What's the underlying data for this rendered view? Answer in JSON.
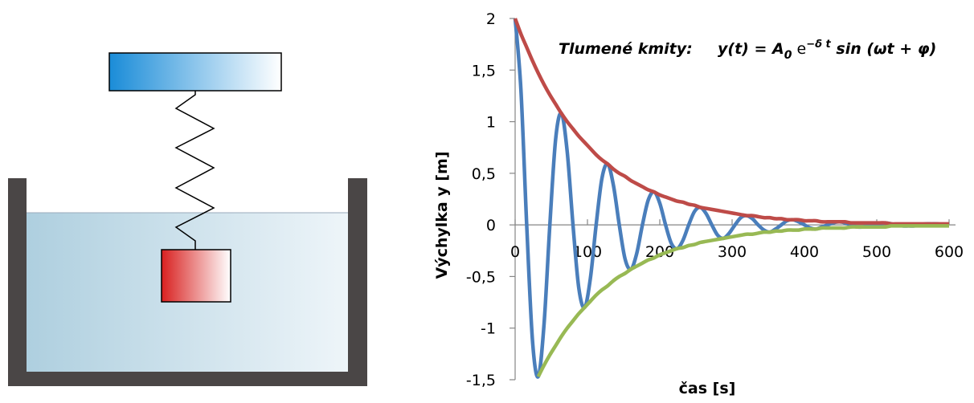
{
  "chart_data": {
    "type": "line",
    "annotation": "Tlumené kmity:",
    "formula": {
      "lhs": "y(t) = A",
      "sub": "0",
      "base": " e",
      "sup": "−δ t",
      "rest": " sin (ωt + φ)"
    },
    "x_label": "čas [s]",
    "y_label": "Výchylka y [m]",
    "x": [
      0,
      8,
      16,
      24,
      32,
      40,
      48,
      56,
      64,
      72,
      80,
      88,
      96,
      104,
      112,
      120,
      128,
      136,
      144,
      152,
      160,
      168,
      176,
      184,
      192,
      200,
      208,
      216,
      224,
      232,
      240,
      248,
      256,
      264,
      272,
      280,
      288,
      296,
      304,
      312,
      320,
      328,
      336,
      344,
      352,
      360,
      368,
      376,
      384,
      392,
      400,
      408,
      416,
      424,
      432,
      440,
      448,
      456,
      464,
      472,
      480,
      488,
      496,
      504,
      512,
      520,
      528,
      536,
      544,
      552,
      560,
      568,
      576,
      584,
      592,
      600
    ],
    "series": [
      {
        "color": "#4a7ebb",
        "values": [
          2,
          1.31,
          0,
          -1.12,
          -1.47,
          -0.96,
          0,
          0.83,
          1.08,
          0.71,
          0,
          -0.61,
          -0.8,
          -0.52,
          0,
          0.45,
          0.59,
          0.38,
          0,
          -0.33,
          -0.43,
          -0.28,
          0,
          0.24,
          0.32,
          0.21,
          0,
          -0.18,
          -0.23,
          -0.15,
          0,
          0.13,
          0.17,
          0.11,
          0,
          -0.1,
          -0.13,
          -0.08,
          0,
          0.07,
          0.09,
          0.06,
          0,
          -0.05,
          -0.07,
          -0.04,
          0,
          0.04,
          0.05,
          0.03,
          0,
          -0.03,
          -0.04,
          -0.02,
          0,
          0.02,
          0.03,
          0.02,
          0,
          -0.02,
          -0.02,
          -0.01,
          0,
          0.01,
          0.02,
          0.01,
          0,
          -0.01,
          -0.01,
          -0.01,
          0,
          0.01,
          0.01,
          0.01,
          0,
          0
        ]
      },
      {
        "color": "#be4b48",
        "values": [
          2,
          1.85,
          1.72,
          1.59,
          1.47,
          1.36,
          1.26,
          1.17,
          1.08,
          1,
          0.93,
          0.86,
          0.8,
          0.74,
          0.68,
          0.63,
          0.59,
          0.54,
          0.5,
          0.47,
          0.43,
          0.4,
          0.37,
          0.34,
          0.32,
          0.29,
          0.27,
          0.25,
          0.23,
          0.22,
          0.2,
          0.19,
          0.17,
          0.16,
          0.15,
          0.14,
          0.13,
          0.12,
          0.11,
          0.1,
          0.09,
          0.09,
          0.08,
          0.07,
          0.07,
          0.06,
          0.06,
          0.05,
          0.05,
          0.05,
          0.04,
          0.04,
          0.04,
          0.03,
          0.03,
          0.03,
          0.03,
          0.03,
          0.02,
          0.02,
          0.02,
          0.02,
          0.02,
          0.02,
          0.02,
          0.01,
          0.01,
          0.01,
          0.01,
          0.01,
          0.01,
          0.01,
          0.01,
          0.01,
          0.01,
          0.01
        ]
      },
      {
        "color": "#98b954",
        "values": [
          null,
          null,
          null,
          null,
          -1.47,
          -1.36,
          -1.26,
          -1.17,
          -1.08,
          -1,
          -0.93,
          -0.86,
          -0.8,
          -0.74,
          -0.68,
          -0.63,
          -0.59,
          -0.54,
          -0.5,
          -0.47,
          -0.43,
          -0.4,
          -0.37,
          -0.34,
          -0.32,
          -0.29,
          -0.27,
          -0.25,
          -0.23,
          -0.22,
          -0.2,
          -0.19,
          -0.17,
          -0.16,
          -0.15,
          -0.14,
          -0.13,
          -0.12,
          -0.11,
          -0.1,
          -0.09,
          -0.09,
          -0.08,
          -0.07,
          -0.07,
          -0.06,
          -0.06,
          -0.05,
          -0.05,
          -0.05,
          -0.04,
          -0.04,
          -0.04,
          -0.03,
          -0.03,
          -0.03,
          -0.03,
          -0.03,
          -0.02,
          -0.02,
          -0.02,
          -0.02,
          -0.02,
          -0.02,
          -0.02,
          -0.01,
          -0.01,
          -0.01,
          -0.01,
          -0.01,
          -0.01,
          -0.01,
          -0.01,
          -0.01,
          -0.01,
          -0.01
        ]
      }
    ],
    "xlim": [
      0,
      600
    ],
    "xticks": [
      0,
      100,
      200,
      300,
      400,
      500,
      600
    ],
    "ylim": [
      -1.5,
      2
    ],
    "yticks": [
      {
        "value": -1.5,
        "label": "-1,5"
      },
      -1,
      {
        "value": -0.5,
        "label": "-0,5"
      },
      0,
      {
        "value": 0.5,
        "label": "0,5"
      },
      1,
      {
        "value": 1.5,
        "label": "1,5"
      },
      2
    ]
  }
}
